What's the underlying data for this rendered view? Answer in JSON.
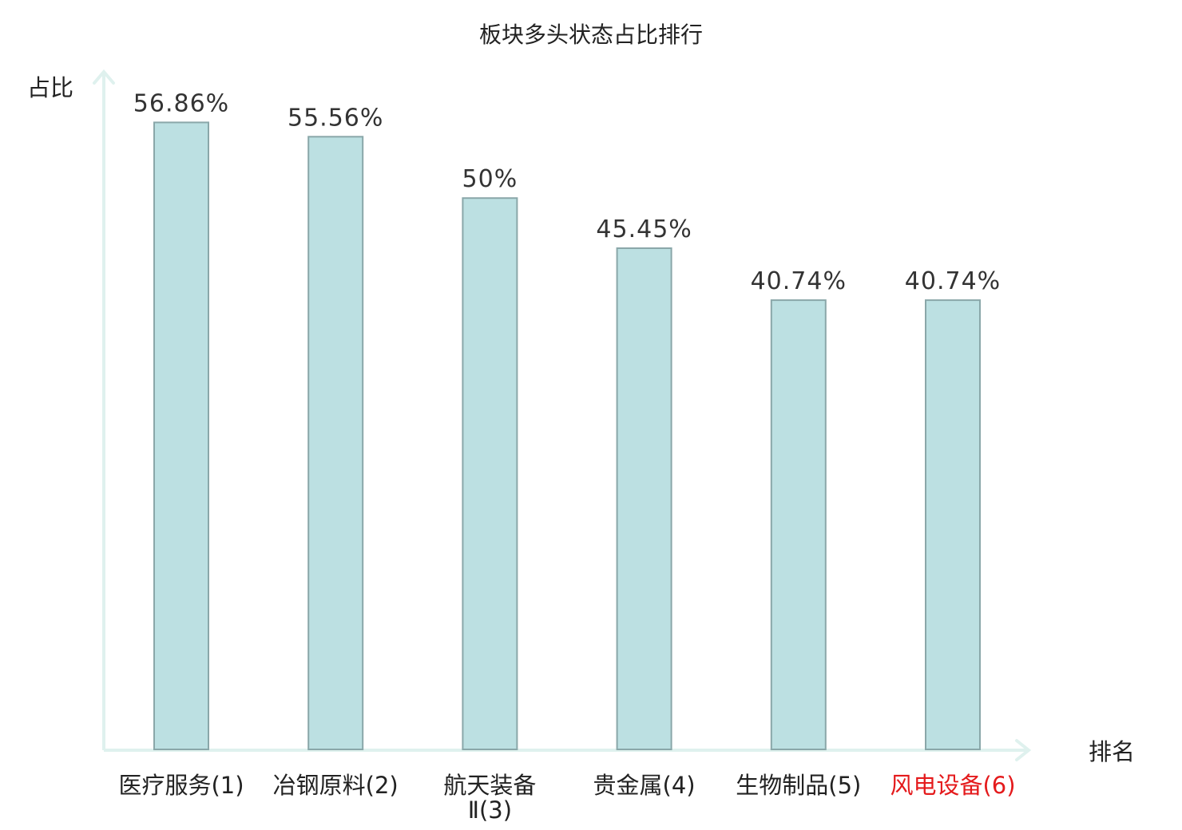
{
  "chart_data": {
    "type": "bar",
    "title": "板块多头状态占比排行",
    "ylabel": "占比",
    "xlabel": "排名",
    "categories": [
      [
        "医疗服务(1)"
      ],
      [
        "冶钢原料(2)"
      ],
      [
        "航天装备",
        "Ⅱ(3)"
      ],
      [
        "贵金属(4)"
      ],
      [
        "生物制品(5)"
      ],
      [
        "风电设备(6)"
      ]
    ],
    "values": [
      56.86,
      55.56,
      50,
      45.45,
      40.74,
      40.74
    ],
    "value_labels": [
      "56.86%",
      "55.56%",
      "50%",
      "45.45%",
      "40.74%",
      "40.74%"
    ],
    "ylim": [
      0,
      60
    ],
    "grid": false,
    "legend": "none",
    "highlight_index": 5,
    "colors": {
      "bar_fill": "#bce0e2",
      "bar_stroke": "#8aa7a9",
      "axis": "#dff1ee",
      "label": "#222222",
      "value_label": "#333333",
      "highlight": "#e41a1c"
    }
  }
}
